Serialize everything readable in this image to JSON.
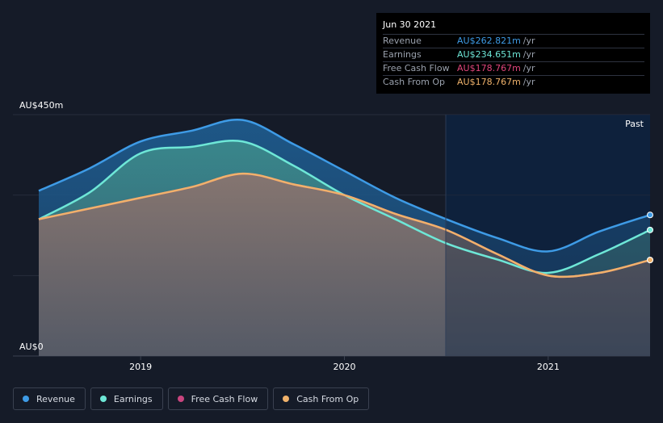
{
  "tooltip": {
    "date": "Jun 30 2021",
    "rows": [
      {
        "label": "Revenue",
        "value": "AU$262.821m",
        "unit": "/yr",
        "color": "#3e9be6"
      },
      {
        "label": "Earnings",
        "value": "AU$234.651m",
        "unit": "/yr",
        "color": "#6ee7d7"
      },
      {
        "label": "Free Cash Flow",
        "value": "AU$178.767m",
        "unit": "/yr",
        "color": "#e0457b"
      },
      {
        "label": "Cash From Op",
        "value": "AU$178.767m",
        "unit": "/yr",
        "color": "#f0b26b"
      }
    ]
  },
  "legend": [
    {
      "label": "Revenue",
      "color": "#3e9be6"
    },
    {
      "label": "Earnings",
      "color": "#6ee7d7"
    },
    {
      "label": "Free Cash Flow",
      "color": "#c9457f"
    },
    {
      "label": "Cash From Op",
      "color": "#f0b26b"
    }
  ],
  "past_label": "Past",
  "chart_data": {
    "type": "area",
    "y_axis_labels": [
      "AU$450m",
      "AU$0"
    ],
    "ylim": [
      0,
      450
    ],
    "x_tick_labels": [
      "2019",
      "2020",
      "2021"
    ],
    "xlim": [
      2018.5,
      2021.5
    ],
    "x_ticks": [
      2019,
      2020,
      2021
    ],
    "past_from": 2020.5,
    "series": [
      {
        "name": "Revenue",
        "color": "#3e9be6",
        "x": [
          2018.5,
          2018.75,
          2019.0,
          2019.25,
          2019.5,
          2019.75,
          2020.0,
          2020.25,
          2020.5,
          2020.75,
          2021.0,
          2021.25,
          2021.5
        ],
        "y": [
          308,
          350,
          400,
          420,
          440,
          395,
          345,
          295,
          255,
          220,
          195,
          232,
          263
        ]
      },
      {
        "name": "Earnings",
        "color": "#6ee7d7",
        "x": [
          2018.5,
          2018.75,
          2019.0,
          2019.25,
          2019.5,
          2019.75,
          2020.0,
          2020.25,
          2020.5,
          2020.75,
          2021.0,
          2021.25,
          2021.5
        ],
        "y": [
          255,
          305,
          378,
          390,
          400,
          355,
          300,
          255,
          210,
          180,
          155,
          190,
          235
        ]
      },
      {
        "name": "Free Cash Flow",
        "color": "#e0457b",
        "x": [
          2018.5,
          2018.75,
          2019.0,
          2019.25,
          2019.5,
          2019.75,
          2020.0,
          2020.25,
          2020.5,
          2020.75,
          2021.0,
          2021.25,
          2021.5
        ],
        "y": [
          255,
          275,
          295,
          315,
          340,
          320,
          300,
          265,
          235,
          190,
          150,
          155,
          179
        ]
      },
      {
        "name": "Cash From Op",
        "color": "#f0b26b",
        "x": [
          2018.5,
          2018.75,
          2019.0,
          2019.25,
          2019.5,
          2019.75,
          2020.0,
          2020.25,
          2020.5,
          2020.75,
          2021.0,
          2021.25,
          2021.5
        ],
        "y": [
          255,
          275,
          295,
          315,
          340,
          320,
          300,
          265,
          235,
          190,
          150,
          155,
          179
        ]
      }
    ]
  }
}
